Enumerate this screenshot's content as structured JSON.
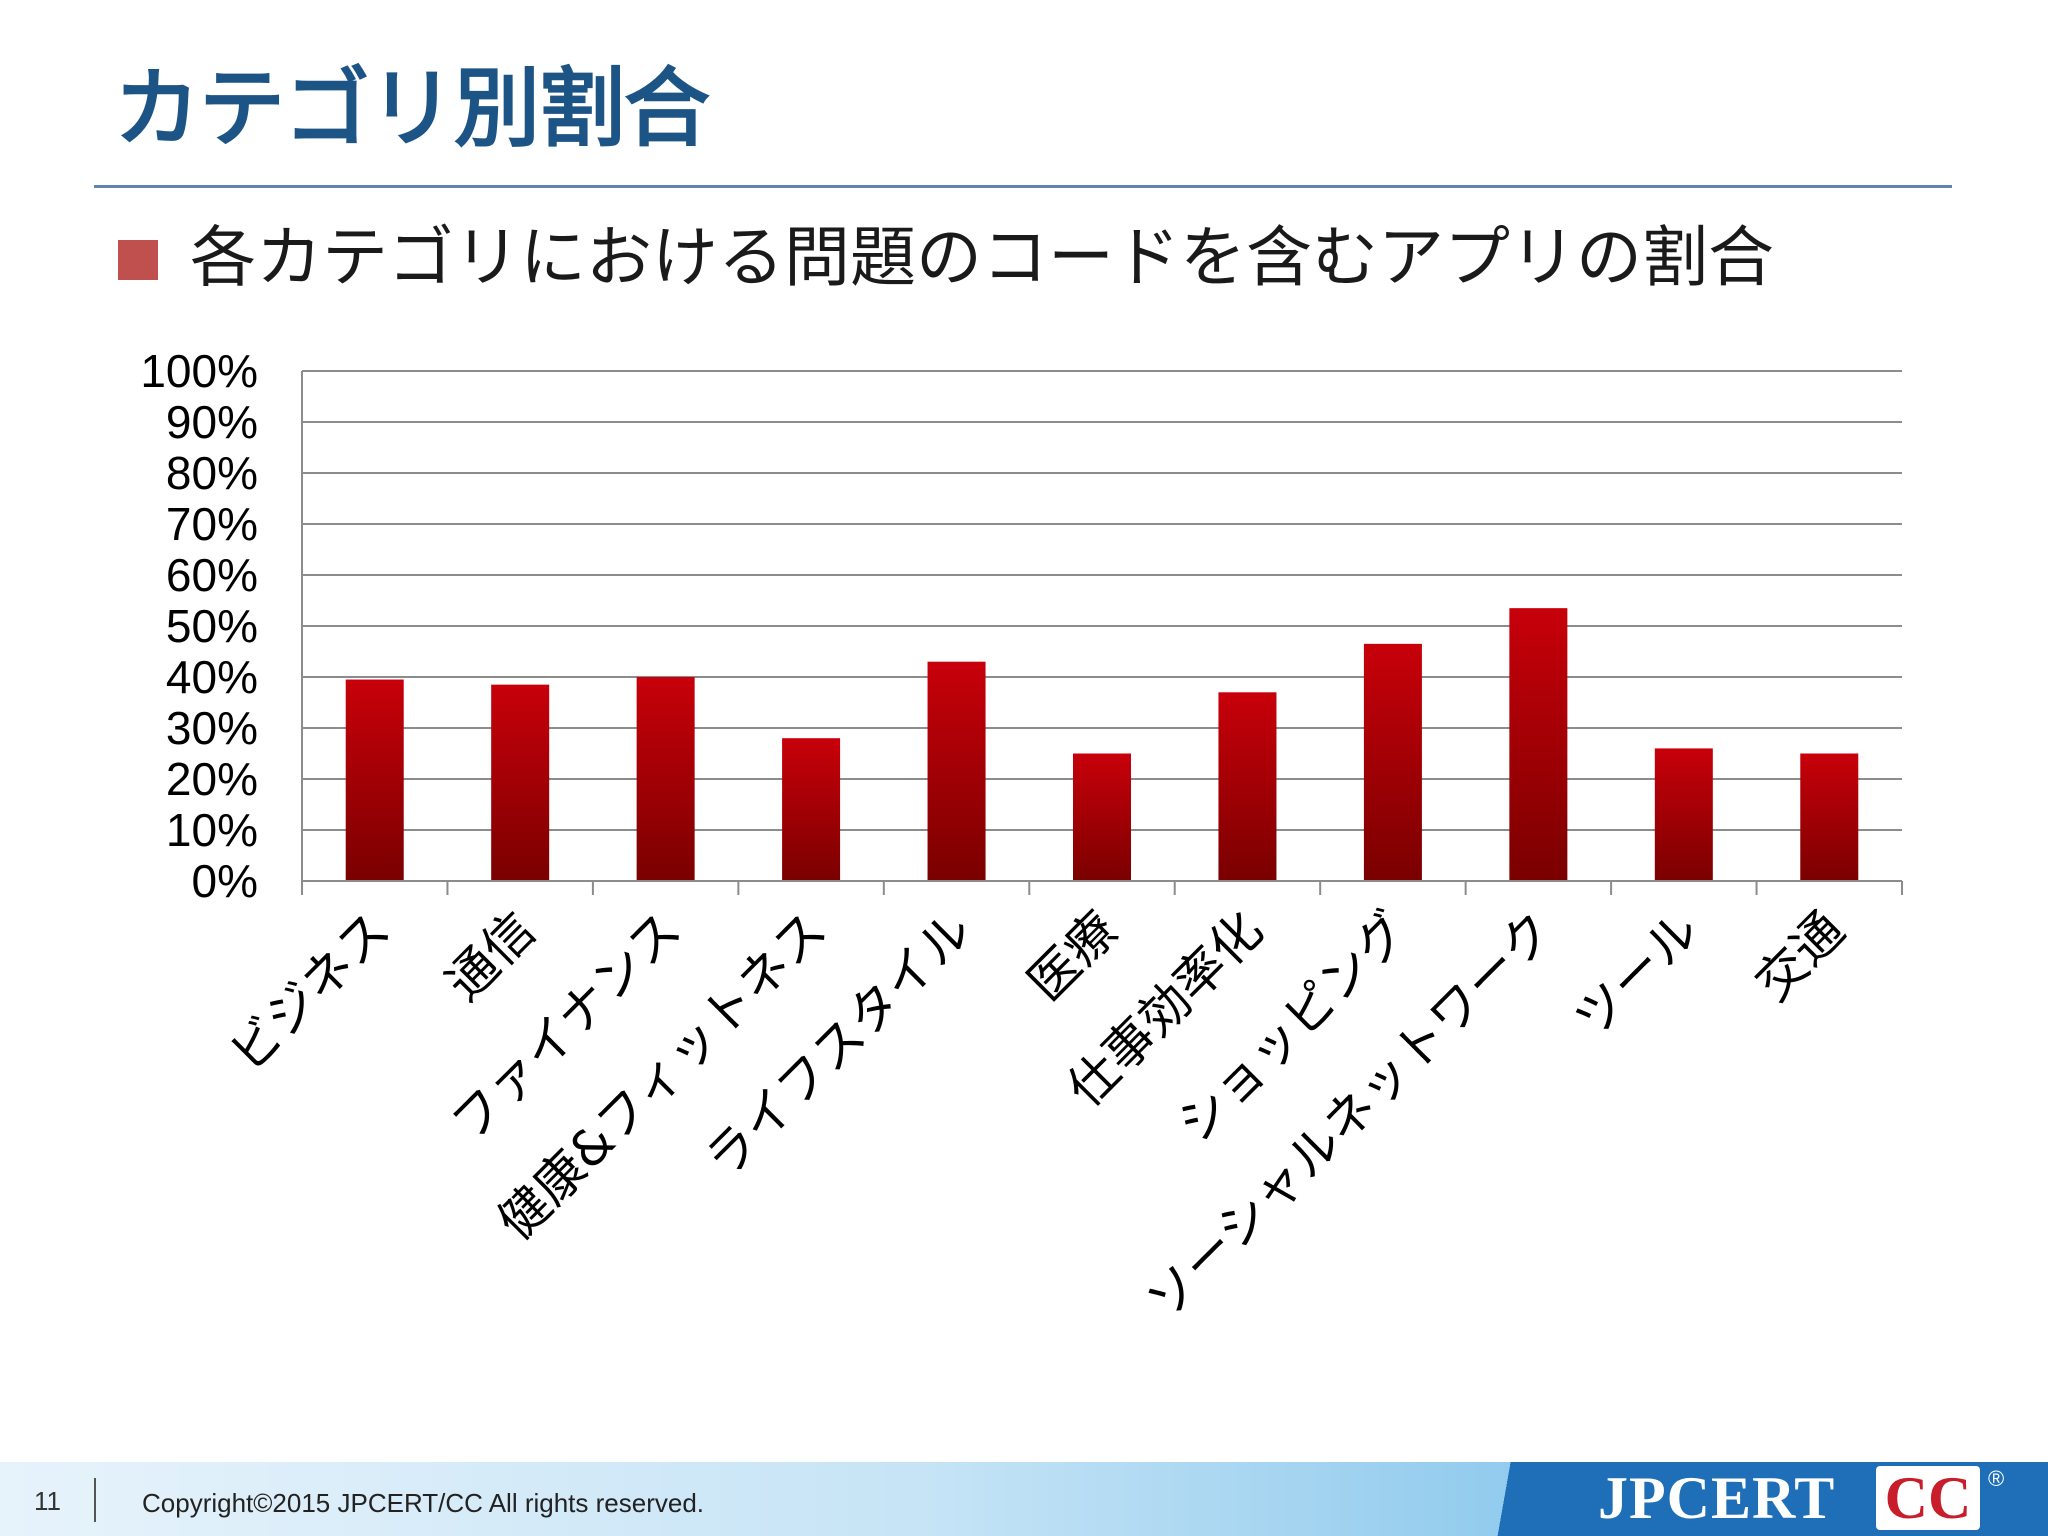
{
  "slide": {
    "title": "カテゴリ別割合",
    "bullet": "各カテゴリにおける問題のコードを含むアプリの割合"
  },
  "footer": {
    "page_number": "11",
    "copyright": "Copyright©2015 JPCERT/CC All rights reserved.",
    "logo_main": "JPCERT",
    "logo_cc": "CC",
    "logo_reg": "®"
  },
  "colors": {
    "title": "#1d5486",
    "bar_top": "#c8000a",
    "bar_bottom": "#7a0000",
    "bullet": "#c0504d"
  },
  "chart_data": {
    "type": "bar",
    "categories": [
      "ビジネス",
      "通信",
      "ファイナンス",
      "健康&フィットネス",
      "ライフスタイル",
      "医療",
      "仕事効率化",
      "ショッピング",
      "ソーシャルネットワーク",
      "ツール",
      "交通"
    ],
    "values": [
      39.5,
      38.5,
      40,
      28,
      43,
      25,
      37,
      46.5,
      53.5,
      26,
      25
    ],
    "ylim": [
      0,
      100
    ],
    "yticks": [
      "0%",
      "10%",
      "20%",
      "30%",
      "40%",
      "50%",
      "60%",
      "70%",
      "80%",
      "90%",
      "100%"
    ],
    "grid": true,
    "legend": "none"
  }
}
